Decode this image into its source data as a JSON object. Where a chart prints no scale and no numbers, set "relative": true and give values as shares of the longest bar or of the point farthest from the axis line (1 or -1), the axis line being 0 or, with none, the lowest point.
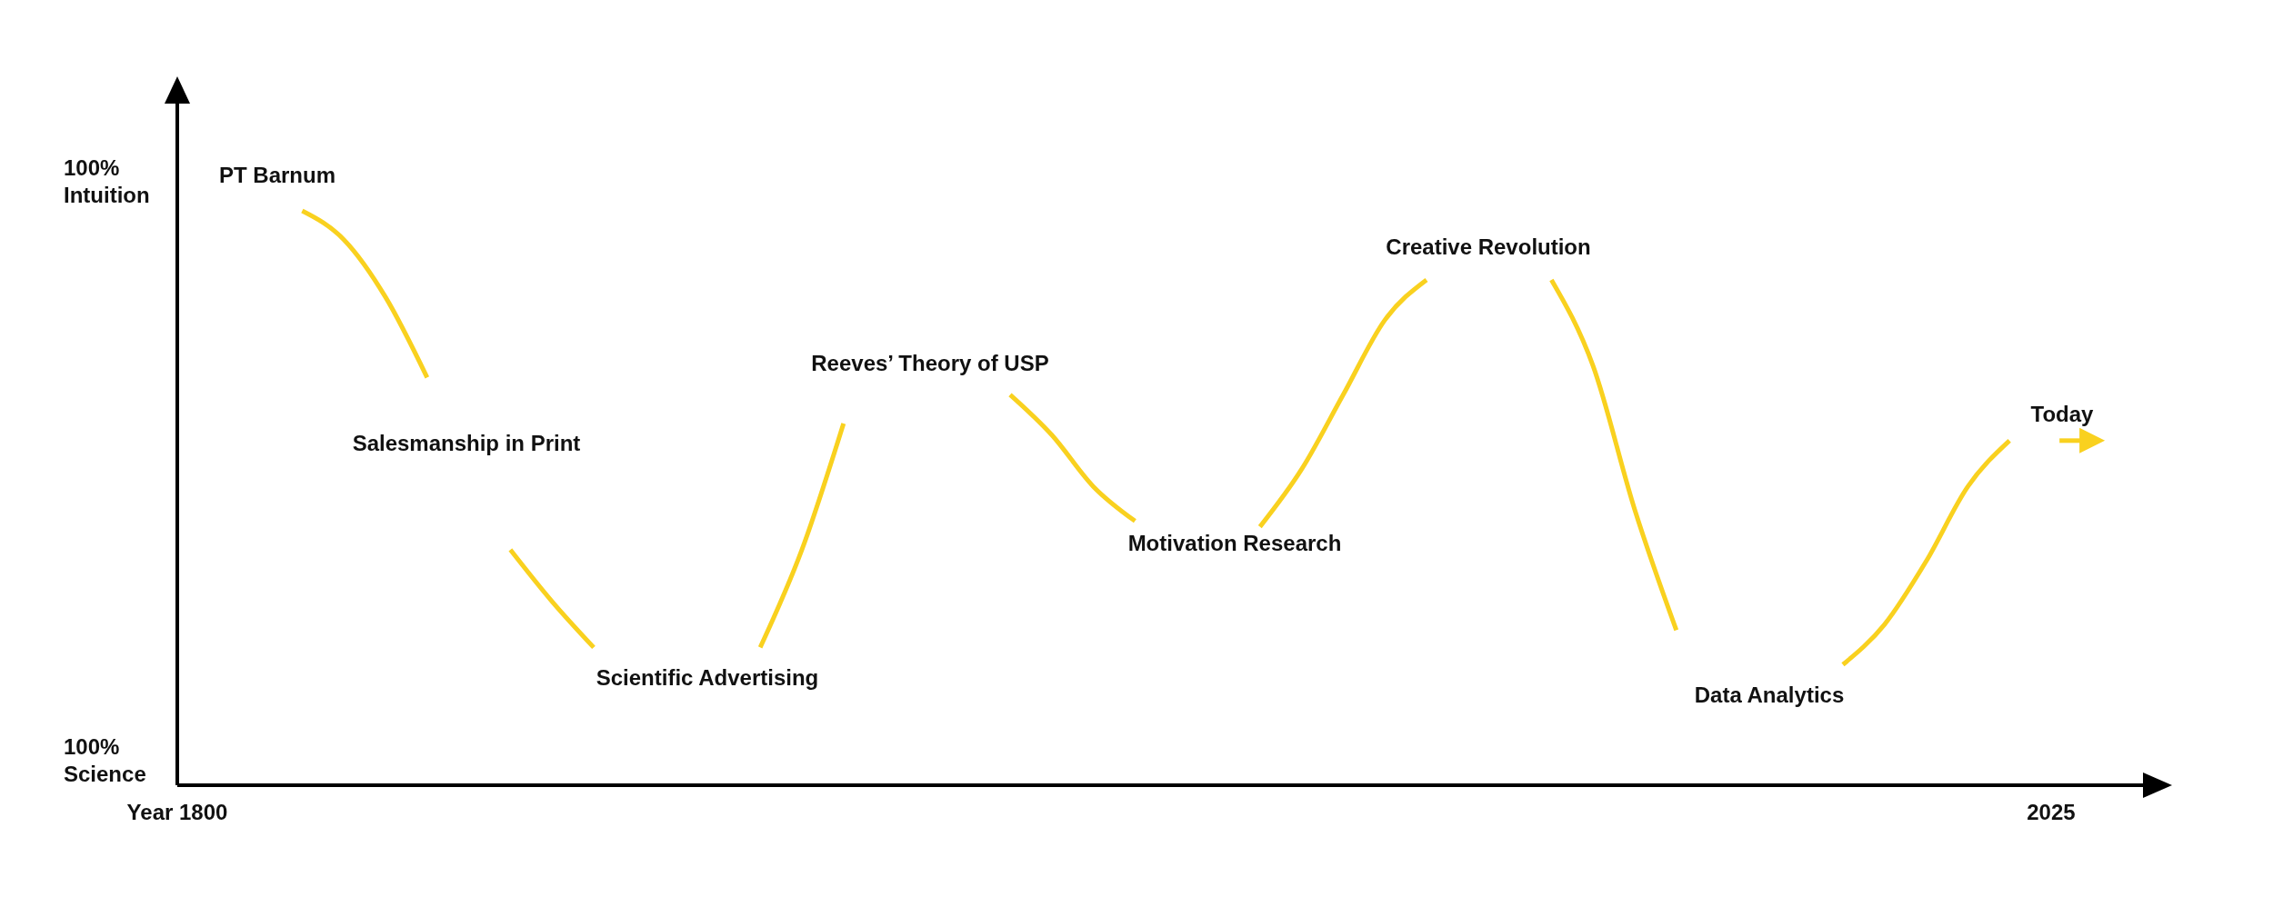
{
  "chart_data": {
    "type": "line",
    "relative": true,
    "categories": [
      "Year 1800",
      null,
      null,
      null,
      null,
      null,
      null,
      null,
      null,
      null,
      null,
      null,
      null,
      null,
      null,
      null,
      null,
      null,
      null,
      null,
      null,
      null,
      null,
      null,
      null,
      null,
      null,
      null,
      null,
      null,
      null,
      null,
      null,
      null,
      null,
      null,
      null,
      null,
      null,
      null,
      null,
      null,
      null,
      null,
      null,
      "2025"
    ],
    "values": [
      null,
      null,
      null,
      1,
      0.95,
      0.85,
      0.71,
      null,
      0.41,
      0.32,
      0.24,
      null,
      null,
      null,
      0.24,
      0.41,
      0.63,
      null,
      null,
      null,
      0.68,
      0.61,
      0.52,
      0.46,
      null,
      null,
      0.45,
      0.55,
      0.68,
      0.81,
      0.88,
      null,
      null,
      0.88,
      0.73,
      0.48,
      0.27,
      null,
      null,
      null,
      0.21,
      0.28,
      0.39,
      0.52,
      0.6,
      null
    ],
    "color": "#f9d11f",
    "marker": "none",
    "line_style": "solid",
    "annotations": [
      "100%\nIntuition",
      "PT Barnum",
      "Salesmanship in Print",
      "Scientific Advertising",
      "Reeves’ Theory of USP",
      "Motivation Research",
      "Creative Revolution",
      "Data Analytics",
      "Today",
      "100%\nScience"
    ]
  }
}
